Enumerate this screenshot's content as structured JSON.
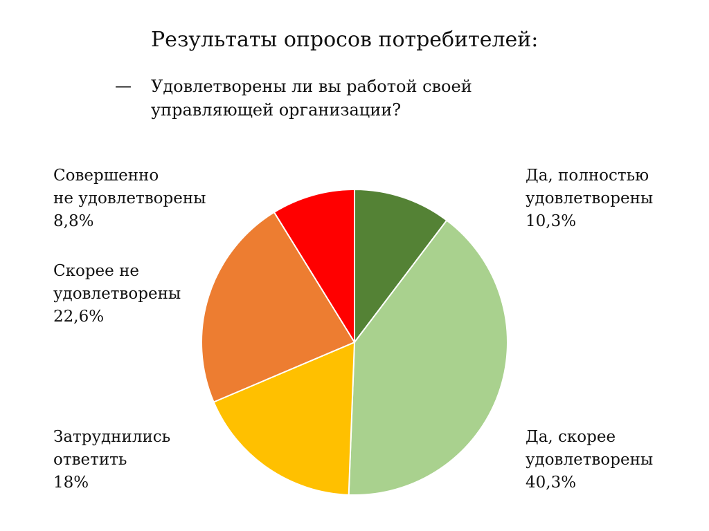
{
  "slide": {
    "title": "Результаты опросов потребителей:",
    "bullet": "—",
    "question_line1": "Удовлетворены ли вы работой своей",
    "question_line2": "управляющей организации?"
  },
  "chart_data": {
    "type": "pie",
    "start_angle_deg": 0,
    "direction": "clockwise",
    "slices": [
      {
        "label_line1": "Да, полностью",
        "label_line2": "удовлетворены",
        "value_label": "10,3%",
        "value": 10.3,
        "color": "#548235"
      },
      {
        "label_line1": "Да, скорее",
        "label_line2": "удовлетворены",
        "value_label": "40,3%",
        "value": 40.3,
        "color": "#a9d18e"
      },
      {
        "label_line1": "Затруднились",
        "label_line2": "ответить",
        "value_label": "18%",
        "value": 18,
        "color": "#ffc000"
      },
      {
        "label_line1": "Скорее не",
        "label_line2": "удовлетворены",
        "value_label": "22,6%",
        "value": 22.6,
        "color": "#ed7d31"
      },
      {
        "label_line1": "Совершенно",
        "label_line2": "не удовлетворены",
        "value_label": "8,8%",
        "value": 8.8,
        "color": "#ff0000"
      }
    ]
  }
}
